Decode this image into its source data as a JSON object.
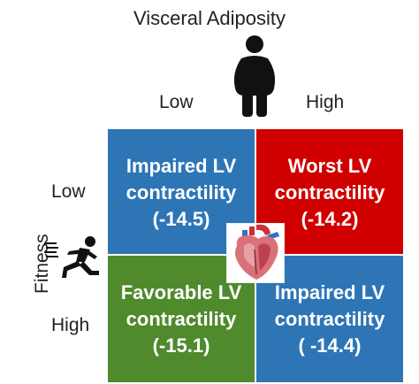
{
  "title": "Visceral Adiposity",
  "columns": {
    "low": "Low",
    "high": "High"
  },
  "rows": {
    "low": "Low",
    "high": "High"
  },
  "row_axis_label": "Fitness",
  "cells": {
    "top_left": {
      "text": "Impaired LV\ncontractility\n(-14.5)",
      "color": "#2e75b6"
    },
    "top_right": {
      "text": "Worst LV\ncontractility\n(-14.2)",
      "color": "#d00000"
    },
    "bottom_left": {
      "text": "Favorable LV\ncontractility\n(-15.1)",
      "color": "#4f8a2c"
    },
    "bottom_right": {
      "text": "Impaired LV\ncontractility\n( -14.4)",
      "color": "#2e75b6"
    }
  },
  "icons": {
    "adiposity": "obese-person-icon",
    "fitness": "running-person-icon",
    "center": "heart-icon"
  }
}
